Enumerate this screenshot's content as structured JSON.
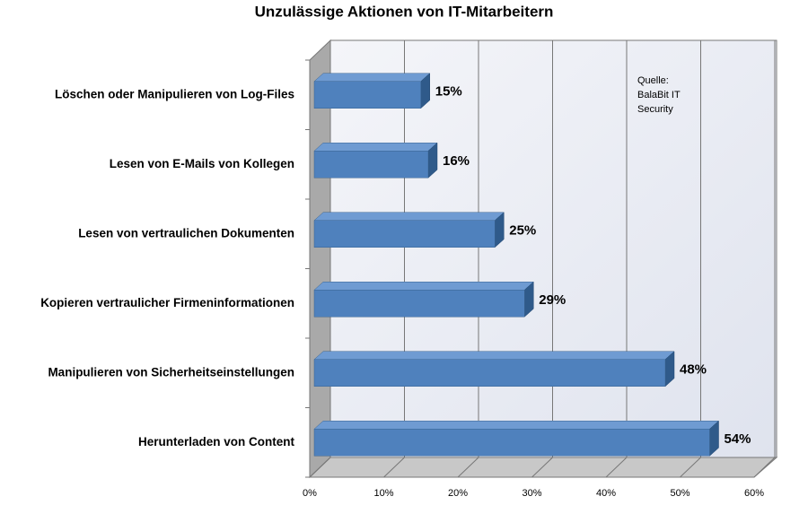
{
  "chart_data": {
    "type": "bar3d",
    "orientation": "horizontal",
    "title": "Unzulässige Aktionen von IT-Mitarbeitern",
    "categories": [
      "Löschen oder Manipulieren von Log-Files",
      "Lesen von E-Mails von Kollegen",
      "Lesen von vertraulichen Dokumenten",
      "Kopieren vertraulicher Firmeninformationen",
      "Manipulieren von Sicherheitseinstellungen",
      "Herunterladen von Content"
    ],
    "values": [
      15,
      16,
      25,
      29,
      48,
      54
    ],
    "value_labels": [
      "15%",
      "16%",
      "25%",
      "29%",
      "48%",
      "54%"
    ],
    "color": "#4f81bd",
    "xlim": [
      0,
      60
    ],
    "xticks": [
      {
        "value": 0,
        "label": "0%"
      },
      {
        "value": 10,
        "label": "10%"
      },
      {
        "value": 20,
        "label": "20%"
      },
      {
        "value": 30,
        "label": "30%"
      },
      {
        "value": 40,
        "label": "40%"
      },
      {
        "value": 50,
        "label": "50%"
      },
      {
        "value": 60,
        "label": "60%"
      }
    ],
    "grid": true,
    "annotation": [
      "Quelle:",
      "BalaBit IT",
      "Security"
    ]
  }
}
